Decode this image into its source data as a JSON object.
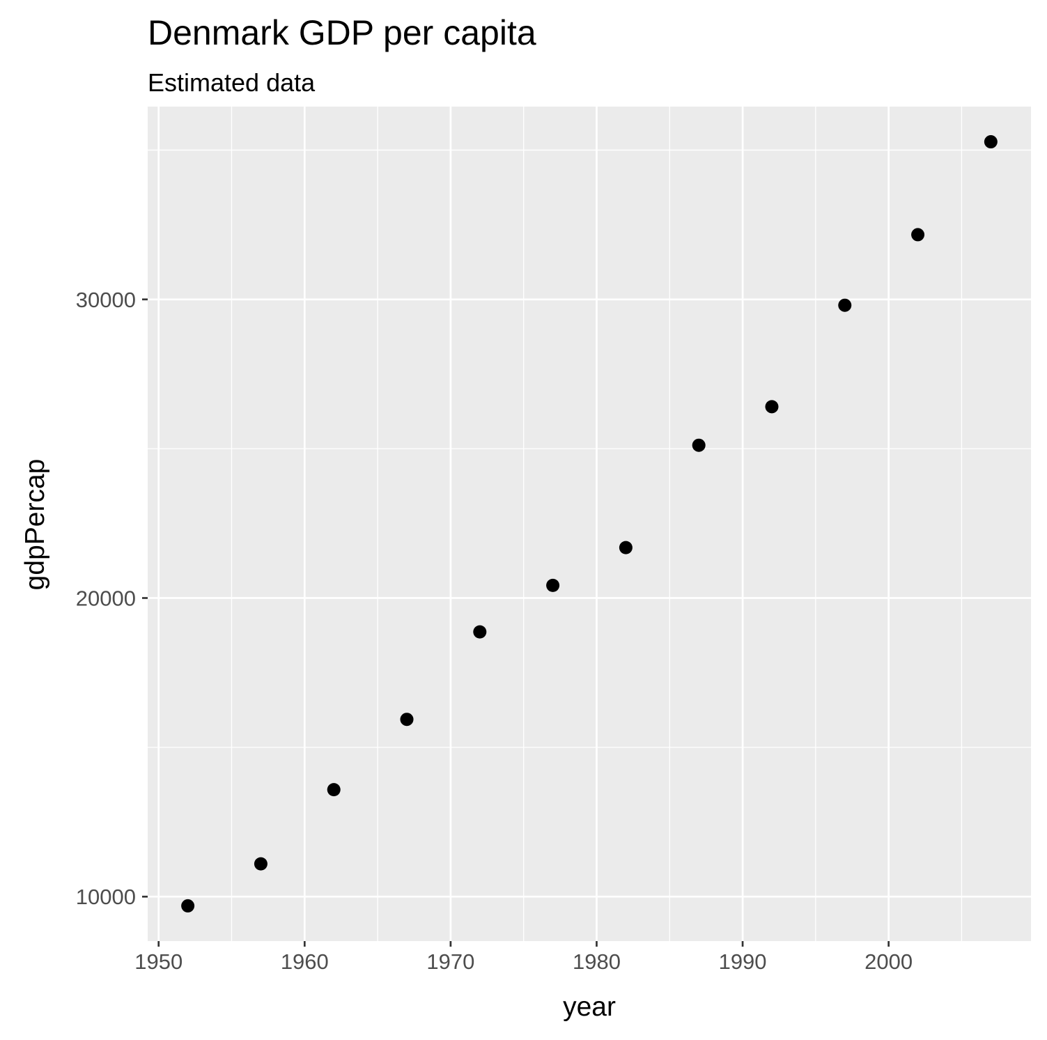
{
  "chart_data": {
    "type": "scatter",
    "title": "Denmark GDP per capita",
    "subtitle": "Estimated data",
    "xlabel": "year",
    "ylabel": "gdpPercap",
    "x": [
      1952,
      1957,
      1962,
      1967,
      1972,
      1977,
      1982,
      1987,
      1992,
      1997,
      2002,
      2007
    ],
    "y": [
      9692,
      11099,
      13583,
      15937,
      18866,
      20423,
      21688,
      25116,
      26407,
      29804,
      32167,
      35278
    ],
    "xlim": [
      1949.25,
      2009.75
    ],
    "ylim": [
      8512,
      36457
    ],
    "x_ticks": [
      1950,
      1960,
      1970,
      1980,
      1990,
      2000
    ],
    "x_tick_labels": [
      "1950",
      "1960",
      "1970",
      "1980",
      "1990",
      "2000"
    ],
    "y_ticks": [
      10000,
      20000,
      30000
    ],
    "y_tick_labels": [
      "10000",
      "20000",
      "30000"
    ],
    "x_minor_ticks": [
      1955,
      1965,
      1975,
      1985,
      1995,
      2005
    ],
    "y_minor_ticks": [
      15000,
      25000,
      35000
    ],
    "grid": true,
    "colors": {
      "panel": "#ebebeb",
      "grid": "#ffffff",
      "point": "#000000",
      "tick": "#333333"
    }
  }
}
